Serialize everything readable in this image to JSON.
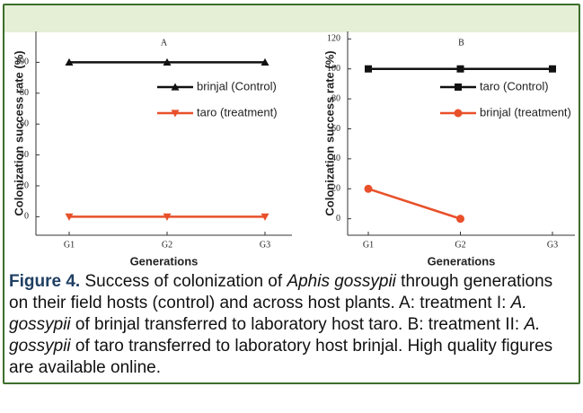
{
  "chart_data": [
    {
      "type": "line",
      "title": "A",
      "x_label": "Generations",
      "y_label": "Colonization success rate (%)",
      "categories": [
        "G1",
        "G2",
        "G3"
      ],
      "series": [
        {
          "name": "brinjal (Control)",
          "color": "#111111",
          "marker": "triangle-up",
          "values": [
            100,
            100,
            100
          ]
        },
        {
          "name": "taro (treatment)",
          "color": "#e8502a",
          "marker": "triangle-down",
          "values": [
            0,
            0,
            0
          ]
        }
      ],
      "ylim": [
        -12,
        120
      ],
      "yticks": [
        0,
        20,
        40,
        60,
        80,
        100
      ],
      "grid": false,
      "legend": "upper right"
    },
    {
      "type": "line",
      "title": "B",
      "x_label": "Generations",
      "y_label": "Colonization success rate (%)",
      "categories": [
        "G1",
        "G2",
        "G3"
      ],
      "series": [
        {
          "name": "taro (Control)",
          "color": "#111111",
          "marker": "square",
          "values": [
            100,
            100,
            100
          ]
        },
        {
          "name": "brinjal (treatment)",
          "color": "#e8502a",
          "marker": "circle",
          "values": [
            20,
            0,
            null
          ]
        }
      ],
      "ylim": [
        -11,
        125
      ],
      "yticks": [
        0,
        20,
        40,
        60,
        80,
        100,
        120
      ],
      "grid": false,
      "legend": "upper right"
    }
  ],
  "caption": {
    "label": "Figure 4.",
    "parts": [
      "Success of colonization of ",
      "Aphis gossypii",
      " through generations on their field hosts (control) and across host plants. A: treatment I: ",
      "A. gossypii",
      " of brinjal transferred to laboratory host taro. B: treatment II: ",
      "A. gossypii",
      " of taro transferred to laboratory host brinjal. High quality figures are available online."
    ]
  }
}
